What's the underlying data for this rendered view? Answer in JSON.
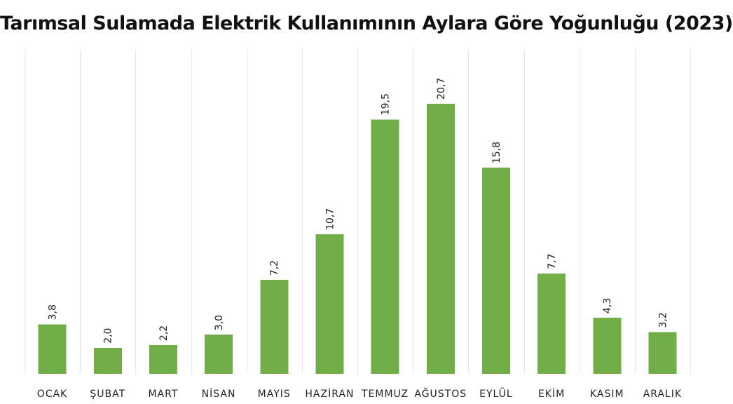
{
  "chart_data": {
    "type": "bar",
    "title": "Tarımsal Sulamada Elektrik Kullanımının Aylara Göre Yoğunluğu (2023)",
    "xlabel": "",
    "ylabel": "",
    "categories": [
      "OCAK",
      "ŞUBAT",
      "MART",
      "NİSAN",
      "MAYIS",
      "HAZİRAN",
      "TEMMUZ",
      "AĞUSTOS",
      "EYLÜL",
      "EKİM",
      "KASIM",
      "ARALIK"
    ],
    "values": [
      3.8,
      2.0,
      2.2,
      3.0,
      7.2,
      10.7,
      19.5,
      20.7,
      15.8,
      7.7,
      4.3,
      3.2
    ],
    "value_labels": [
      "3,8",
      "2,0",
      "2,2",
      "3,0",
      "7,2",
      "10,7",
      "19,5",
      "20,7",
      "15,8",
      "7,7",
      "4,3",
      "3,2"
    ],
    "ylim": [
      0,
      20.7
    ],
    "grid": "vertical separators between categories",
    "legend": "none",
    "bar_color": "#70ad47"
  }
}
